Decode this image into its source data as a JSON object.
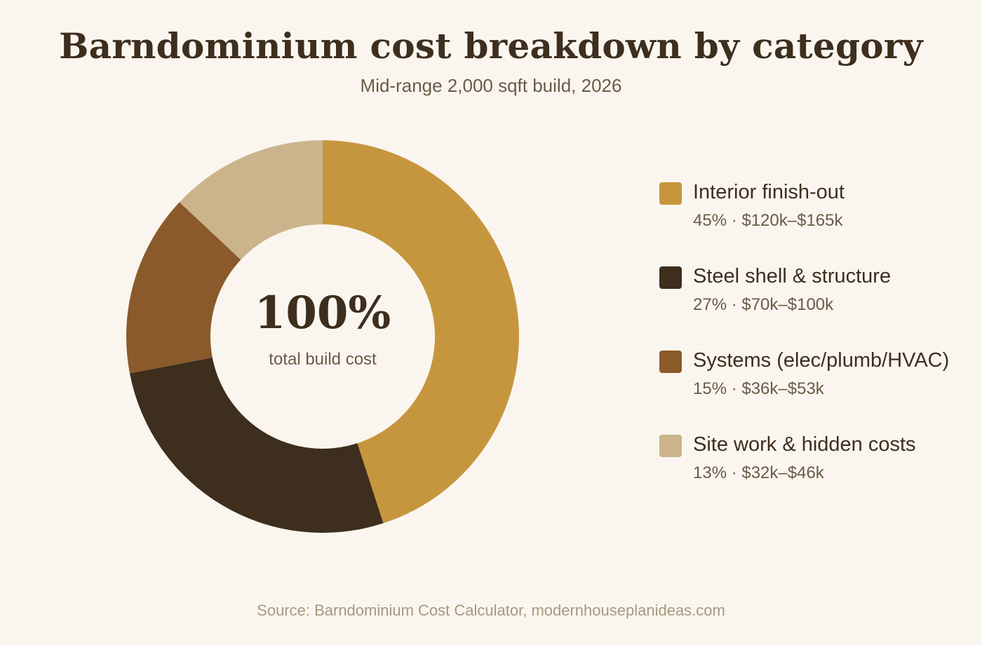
{
  "title": "Barndominium cost breakdown by category",
  "subtitle": "Mid-range 2,000 sqft build, 2026",
  "center": {
    "value": "100%",
    "label": "total build cost"
  },
  "source": "Source: Barndominium Cost Calculator, modernhouseplanideas.com",
  "chart_data": {
    "type": "pie",
    "title": "Barndominium cost breakdown by category",
    "subtitle": "Mid-range 2,000 sqft build, 2026",
    "categories": [
      "Interior finish-out",
      "Steel shell & structure",
      "Systems (elec/plumb/HVAC)",
      "Site work & hidden costs"
    ],
    "values": [
      45,
      27,
      15,
      13
    ],
    "ranges": [
      "$120k–$165k",
      "$70k–$100k",
      "$36k–$53k",
      "$32k–$46k"
    ],
    "colors": [
      "#c6963f",
      "#3d2e1e",
      "#8a5a2b",
      "#cbb48b"
    ],
    "legend_position": "right",
    "donut": true
  },
  "legend": [
    {
      "label": "Interior finish-out",
      "detail": "45% · $120k–$165k",
      "color": "#c6963f"
    },
    {
      "label": "Steel shell & structure",
      "detail": "27% · $70k–$100k",
      "color": "#3d2e1e"
    },
    {
      "label": "Systems (elec/plumb/HVAC)",
      "detail": "15% · $36k–$53k",
      "color": "#8a5a2b"
    },
    {
      "label": "Site work & hidden costs",
      "detail": "13% · $32k–$46k",
      "color": "#cbb48b"
    }
  ]
}
